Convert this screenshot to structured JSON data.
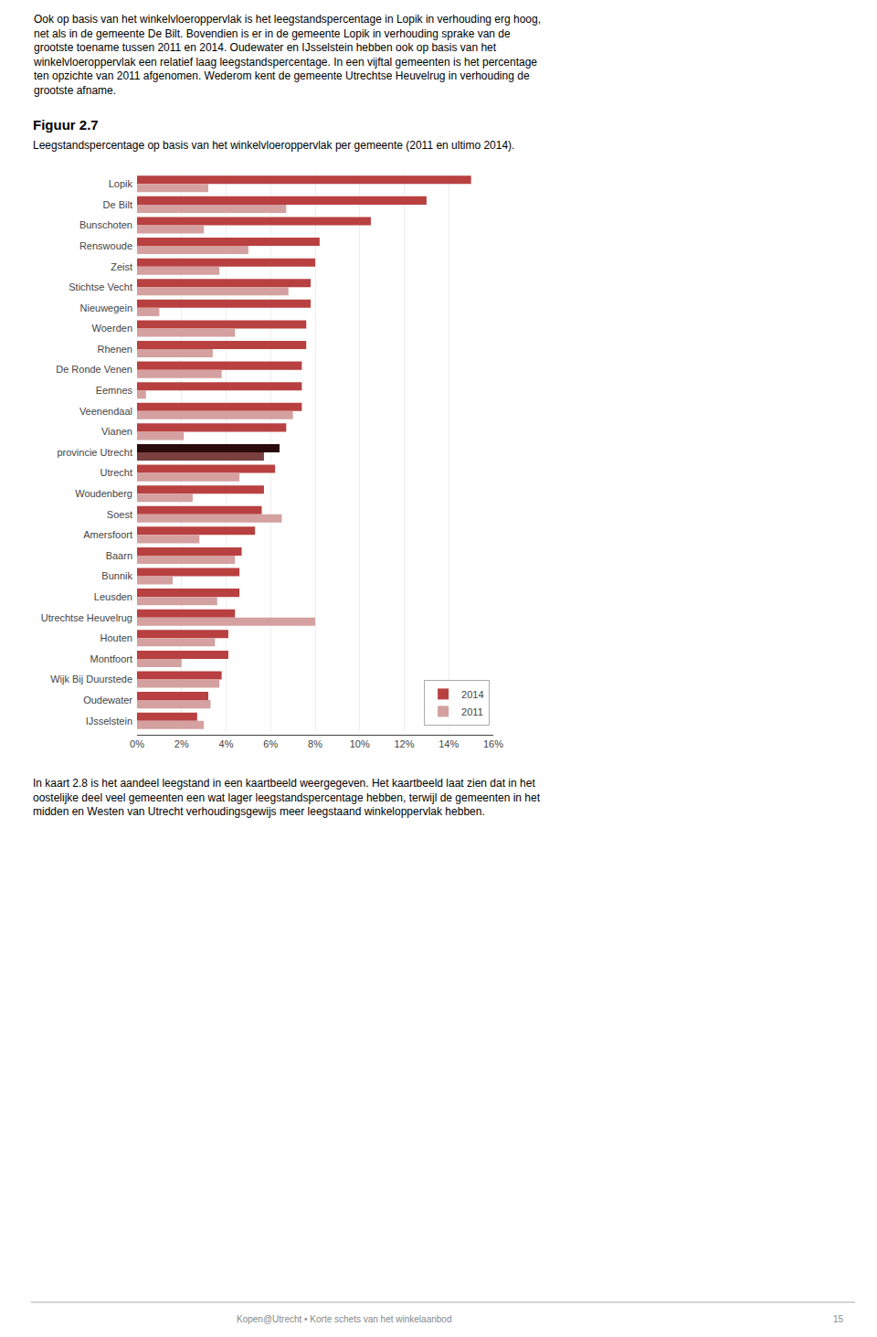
{
  "chart_data": {
    "type": "bar",
    "orientation": "horizontal",
    "title": "Figuur 2.7",
    "subtitle": "Leegstandspercentage op basis van het winkelvloeroppervlak per gemeente (2011 en ultimo 2014).",
    "categories": [
      "Lopik",
      "De Bilt",
      "Bunschoten",
      "Renswoude",
      "Zeist",
      "Stichtse Vecht",
      "Nieuwegein",
      "Woerden",
      "Rhenen",
      "De Ronde Venen",
      "Eemnes",
      "Veenendaal",
      "Vianen",
      "provincie Utrecht",
      "Utrecht",
      "Woudenberg",
      "Soest",
      "Amersfoort",
      "Baarn",
      "Bunnik",
      "Leusden",
      "Utrechtse Heuvelrug",
      "Houten",
      "Montfoort",
      "Wijk Bij Duurstede",
      "Oudewater",
      "IJsselstein"
    ],
    "series": [
      {
        "name": "2014",
        "color": "#B94040",
        "colors": [
          "#B94040",
          "#B94040",
          "#B94040",
          "#B94040",
          "#B94040",
          "#B94040",
          "#B94040",
          "#B94040",
          "#B94040",
          "#B94040",
          "#B94040",
          "#B94040",
          "#B94040",
          "#2A0A0A",
          "#B94040",
          "#B94040",
          "#B94040",
          "#B94040",
          "#B94040",
          "#B94040",
          "#B94040",
          "#B94040",
          "#B94040",
          "#B94040",
          "#B94040",
          "#B94040",
          "#B94040"
        ],
        "values": [
          15.0,
          13.0,
          10.5,
          8.2,
          8.0,
          7.8,
          7.8,
          7.6,
          7.6,
          7.4,
          7.4,
          7.4,
          6.7,
          6.4,
          6.2,
          5.7,
          5.6,
          5.3,
          4.7,
          4.6,
          4.6,
          4.4,
          4.1,
          4.1,
          3.8,
          3.2,
          2.7
        ]
      },
      {
        "name": "2011",
        "color": "#D4A0A0",
        "colors": [
          "#D4A0A0",
          "#D4A0A0",
          "#D4A0A0",
          "#D4A0A0",
          "#D4A0A0",
          "#D4A0A0",
          "#D4A0A0",
          "#D4A0A0",
          "#D4A0A0",
          "#D4A0A0",
          "#D4A0A0",
          "#D4A0A0",
          "#D4A0A0",
          "#7A4040",
          "#D4A0A0",
          "#D4A0A0",
          "#D4A0A0",
          "#D4A0A0",
          "#D4A0A0",
          "#D4A0A0",
          "#D4A0A0",
          "#D4A0A0",
          "#D4A0A0",
          "#D4A0A0",
          "#D4A0A0",
          "#D4A0A0",
          "#D4A0A0"
        ],
        "values": [
          3.2,
          6.7,
          3.0,
          5.0,
          3.7,
          6.8,
          1.0,
          4.4,
          3.4,
          3.8,
          0.4,
          7.0,
          2.1,
          5.7,
          4.6,
          2.5,
          6.5,
          2.8,
          4.4,
          1.6,
          3.6,
          8.0,
          3.5,
          2.0,
          3.7,
          3.3,
          3.0
        ]
      }
    ],
    "xlim": [
      0,
      16
    ],
    "xticks": [
      {
        "value": 0,
        "label": "0%"
      },
      {
        "value": 2,
        "label": "2%"
      },
      {
        "value": 4,
        "label": "4%"
      },
      {
        "value": 6,
        "label": "6%"
      },
      {
        "value": 8,
        "label": "8%"
      },
      {
        "value": 10,
        "label": "10%"
      },
      {
        "value": 12,
        "label": "12%"
      },
      {
        "value": 14,
        "label": "14%"
      },
      {
        "value": 16,
        "label": "16%"
      }
    ],
    "grid": true,
    "legend": "lower right",
    "annotations": [
      "Ook op basis van het winkelvloeroppervlak is het leegstandspercentage in Lopik in verhouding erg hoog,\nnet als in de gemeente De Bilt. Bovendien is er in de gemeente Lopik in verhouding sprake van de\ngrootste toename tussen 2011 en 2014. Oudewater en IJsselstein hebben ook op basis van het\nwinkelvloeroppervlak een relatief laag leegstandspercentage. In een vijftal gemeenten is het percentage\nten opzichte van 2011 afgenomen. Wederom kent de gemeente Utrechtse Heuvelrug in verhouding de\ngrootste afname.",
      "In kaart 2.8 is het aandeel leegstand in een kaartbeeld weergegeven. Het kaartbeeld laat zien dat in het\noostelijke deel veel gemeenten een wat lager leegstandspercentage hebben, terwijl de gemeenten in het\nmidden en Westen van Utrecht verhoudingsgewijs meer leegstaand winkeloppervlak hebben.",
      "Kopen@Utrecht • Korte schets van het winkelaanbod",
      "15"
    ]
  }
}
